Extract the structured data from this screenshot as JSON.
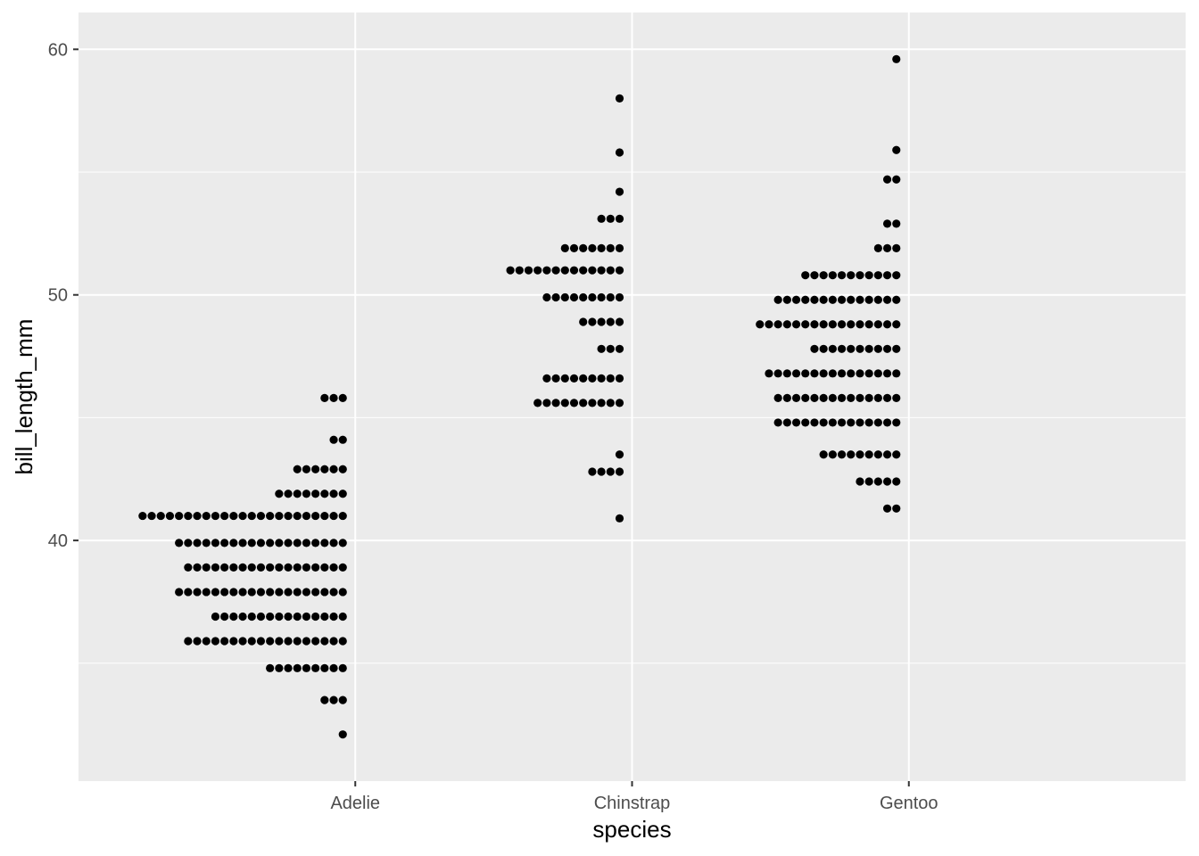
{
  "chart_data": {
    "type": "dotplot",
    "xlabel": "species",
    "ylabel": "bill_length_mm",
    "categories": [
      "Adelie",
      "Chinstrap",
      "Gentoo"
    ],
    "ylim": [
      30.2,
      61.5
    ],
    "y_ticks": [
      40,
      50,
      60
    ],
    "y_tick_labels": [
      "40",
      "50",
      "60"
    ],
    "grid": true,
    "legend": "none",
    "colors": {
      "panel": "#ebebeb",
      "grid": "#ffffff",
      "dot": "#000000"
    },
    "stacks": [
      {
        "category": "Adelie",
        "bins": [
          {
            "y": 45.8,
            "count": 3
          },
          {
            "y": 44.1,
            "count": 2
          },
          {
            "y": 42.9,
            "count": 6
          },
          {
            "y": 41.9,
            "count": 8
          },
          {
            "y": 41.0,
            "count": 23
          },
          {
            "y": 39.9,
            "count": 19
          },
          {
            "y": 38.9,
            "count": 18
          },
          {
            "y": 37.9,
            "count": 19
          },
          {
            "y": 36.9,
            "count": 15
          },
          {
            "y": 35.9,
            "count": 18
          },
          {
            "y": 34.8,
            "count": 9
          },
          {
            "y": 33.5,
            "count": 3
          },
          {
            "y": 32.1,
            "count": 1
          }
        ]
      },
      {
        "category": "Chinstrap",
        "bins": [
          {
            "y": 58.0,
            "count": 1
          },
          {
            "y": 55.8,
            "count": 1
          },
          {
            "y": 54.2,
            "count": 1
          },
          {
            "y": 53.1,
            "count": 3
          },
          {
            "y": 51.9,
            "count": 7
          },
          {
            "y": 51.0,
            "count": 13
          },
          {
            "y": 49.9,
            "count": 9
          },
          {
            "y": 48.9,
            "count": 5
          },
          {
            "y": 47.8,
            "count": 3
          },
          {
            "y": 46.6,
            "count": 9
          },
          {
            "y": 45.6,
            "count": 10
          },
          {
            "y": 43.5,
            "count": 1
          },
          {
            "y": 42.8,
            "count": 4
          },
          {
            "y": 40.9,
            "count": 1
          }
        ]
      },
      {
        "category": "Gentoo",
        "bins": [
          {
            "y": 59.6,
            "count": 1
          },
          {
            "y": 55.9,
            "count": 1
          },
          {
            "y": 54.7,
            "count": 2
          },
          {
            "y": 52.9,
            "count": 2
          },
          {
            "y": 51.9,
            "count": 3
          },
          {
            "y": 50.8,
            "count": 11
          },
          {
            "y": 49.8,
            "count": 14
          },
          {
            "y": 48.8,
            "count": 16
          },
          {
            "y": 47.8,
            "count": 10
          },
          {
            "y": 46.8,
            "count": 15
          },
          {
            "y": 45.8,
            "count": 14
          },
          {
            "y": 44.8,
            "count": 14
          },
          {
            "y": 43.5,
            "count": 9
          },
          {
            "y": 42.4,
            "count": 5
          },
          {
            "y": 41.3,
            "count": 2
          }
        ]
      }
    ]
  }
}
